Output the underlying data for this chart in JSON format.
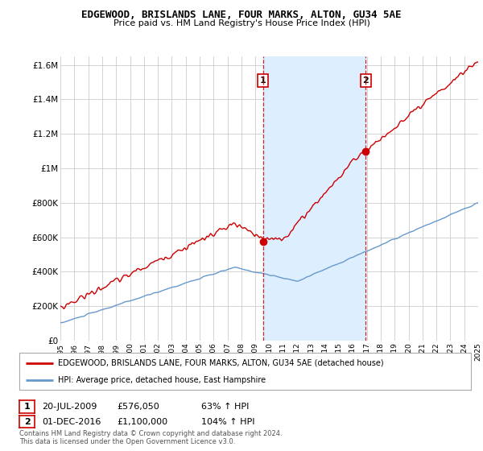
{
  "title": "EDGEWOOD, BRISLANDS LANE, FOUR MARKS, ALTON, GU34 5AE",
  "subtitle": "Price paid vs. HM Land Registry's House Price Index (HPI)",
  "background_color": "#ffffff",
  "plot_bg_color": "#ffffff",
  "grid_color": "#cccccc",
  "ylim": [
    0,
    1650000
  ],
  "yticks": [
    0,
    200000,
    400000,
    600000,
    800000,
    1000000,
    1200000,
    1400000,
    1600000
  ],
  "ytick_labels": [
    "£0",
    "£200K",
    "£400K",
    "£600K",
    "£800K",
    "£1M",
    "£1.2M",
    "£1.4M",
    "£1.6M"
  ],
  "year_start": 1995,
  "year_end": 2025,
  "red_line_color": "#cc0000",
  "blue_line_color": "#6699cc",
  "shade_color": "#ddeeff",
  "sale1_year": 2009.55,
  "sale1_price": 576050,
  "sale1_label": "1",
  "sale1_date": "20-JUL-2009",
  "sale1_amount": "£576,050",
  "sale1_pct": "63% ↑ HPI",
  "sale2_year": 2016.92,
  "sale2_price": 1100000,
  "sale2_label": "2",
  "sale2_date": "01-DEC-2016",
  "sale2_amount": "£1,100,000",
  "sale2_pct": "104% ↑ HPI",
  "legend_line1": "EDGEWOOD, BRISLANDS LANE, FOUR MARKS, ALTON, GU34 5AE (detached house)",
  "legend_line2": "HPI: Average price, detached house, East Hampshire",
  "footnote": "Contains HM Land Registry data © Crown copyright and database right 2024.\nThis data is licensed under the Open Government Licence v3.0."
}
